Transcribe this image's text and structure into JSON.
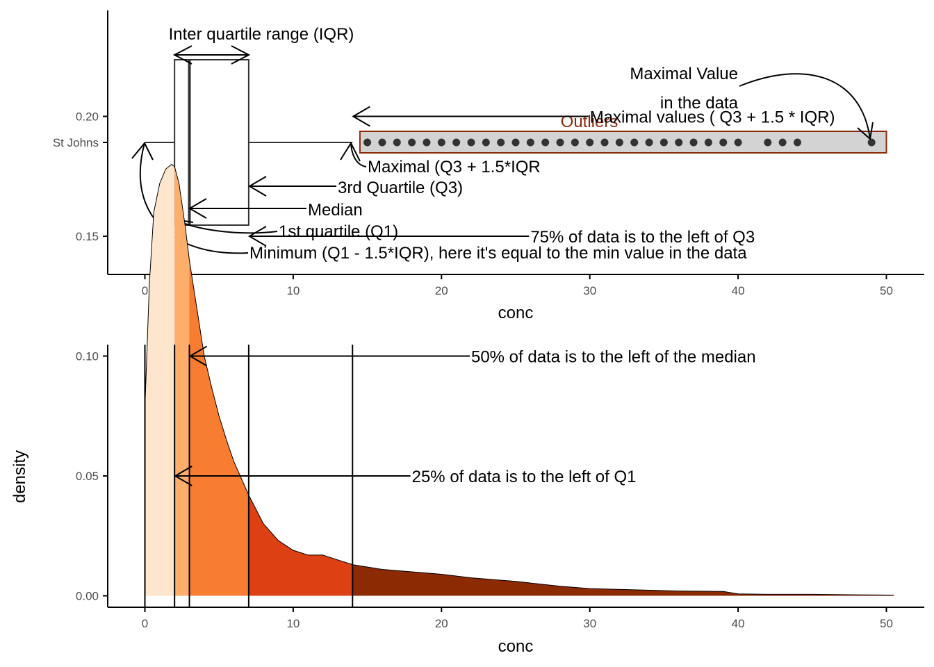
{
  "chart_data": [
    {
      "type": "boxplot",
      "category": "St Johns",
      "xlabel": "conc",
      "xlim": [
        -2.5,
        51
      ],
      "xticks": [
        0,
        10,
        20,
        30,
        40,
        50
      ],
      "box": {
        "min": 0,
        "q1": 2,
        "median": 3,
        "q3": 7,
        "upper_whisker": 14
      },
      "outliers": [
        15,
        16,
        17,
        18,
        19,
        20,
        21,
        22,
        23,
        24,
        25,
        26,
        27,
        28,
        29,
        30,
        31,
        32,
        33,
        34,
        35,
        36,
        37,
        38,
        39,
        40,
        42,
        43,
        44,
        49
      ],
      "outlier_box": {
        "from": 14.5,
        "to": 50
      },
      "annotations": {
        "iqr": "Inter quartile range (IQR)",
        "maximal_value_line1": "Maximal Value",
        "maximal_value_line2": "in the data",
        "outliers": "Outliers",
        "maximal_whisker": "Maximal (Q3 + 1.5*IQR",
        "q3": "3rd Quartile (Q3)",
        "median": "Median",
        "q1": "1st quartile (Q1)",
        "minimum": "Minimum (Q1 - 1.5*IQR), here it's equal to the min value in the data"
      },
      "colors": {
        "outlier_border": "#8B2A0A",
        "outlier_fill": "#D3D3D3",
        "points": "#333333"
      }
    },
    {
      "type": "area",
      "xlabel": "conc",
      "ylabel": "density",
      "xlim": [
        -2.5,
        51
      ],
      "ylim": [
        -0.009,
        0.21
      ],
      "xticks": [
        0,
        10,
        20,
        30,
        40,
        50
      ],
      "yticks": [
        "0.00",
        "0.05",
        "0.10",
        "0.15",
        "0.20"
      ],
      "density_x": [
        0,
        0.3,
        0.6,
        1.0,
        1.4,
        1.8,
        2.0,
        2.3,
        2.7,
        3.0,
        3.5,
        4.0,
        4.5,
        5.0,
        5.5,
        6.0,
        7.0,
        8.0,
        9.0,
        10.0,
        11.0,
        12.0,
        13.0,
        14.0,
        16.0,
        18.0,
        20.0,
        22.0,
        25.0,
        28.0,
        30.0,
        33.0,
        36.0,
        39.0,
        40.0,
        42.0,
        45.0,
        48.0,
        50.5
      ],
      "density_y": [
        0.078,
        0.13,
        0.16,
        0.172,
        0.178,
        0.18,
        0.179,
        0.172,
        0.155,
        0.14,
        0.12,
        0.1,
        0.087,
        0.075,
        0.065,
        0.056,
        0.042,
        0.03,
        0.023,
        0.019,
        0.017,
        0.017,
        0.015,
        0.013,
        0.011,
        0.01,
        0.009,
        0.0075,
        0.006,
        0.004,
        0.003,
        0.0025,
        0.002,
        0.0018,
        0.0008,
        0.0006,
        0.0006,
        0.0004,
        0.0003
      ],
      "segments": [
        {
          "from": 0,
          "to": 2,
          "color": "#FEE6CE"
        },
        {
          "from": 2,
          "to": 3,
          "color": "#FDAE6B"
        },
        {
          "from": 3,
          "to": 7,
          "color": "#F87D30"
        },
        {
          "from": 7,
          "to": 14,
          "color": "#DD4012"
        },
        {
          "from": 14,
          "to": 50.5,
          "color": "#8C2A04"
        }
      ],
      "vlines": [
        0,
        2,
        3,
        7,
        14
      ],
      "annotations": [
        {
          "text": "Maximal values ( Q3 + 1.5 * IQR)",
          "x": 30,
          "y": 0.2,
          "arrow_to": 14
        },
        {
          "text": "75% of data is to the left of Q3",
          "x": 26,
          "y": 0.15,
          "arrow_to": 7
        },
        {
          "text": "50% of data is to the left of the median",
          "x": 22,
          "y": 0.1,
          "arrow_to": 3
        },
        {
          "text": "25% of data is to the left of Q1",
          "x": 18,
          "y": 0.05,
          "arrow_to": 2
        }
      ]
    }
  ]
}
